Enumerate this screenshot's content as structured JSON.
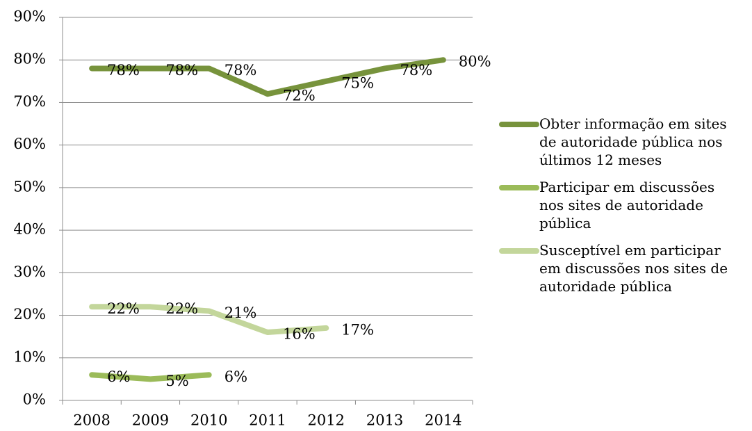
{
  "chart_data": {
    "type": "line",
    "categories": [
      "2008",
      "2009",
      "2010",
      "2011",
      "2012",
      "2013",
      "2014"
    ],
    "series": [
      {
        "name": "Obter informação em sites de autoridade pública nos últimos 12 meses",
        "color": "#77933c",
        "values": [
          78,
          78,
          78,
          72,
          75,
          78,
          80
        ],
        "value_labels": [
          "78%",
          "78%",
          "78%",
          "72%",
          "75%",
          "78%",
          "80%"
        ]
      },
      {
        "name": "Participar em discussões nos sites de autoridade pública",
        "color": "#9bbb59",
        "values": [
          6,
          5,
          6,
          null,
          null,
          null,
          null
        ],
        "value_labels": [
          "6%",
          "5%",
          "6%",
          null,
          null,
          null,
          null
        ]
      },
      {
        "name": "Susceptível em participar em discussões nos sites de autoridade pública",
        "color": "#c3d69b",
        "values": [
          22,
          22,
          21,
          16,
          17,
          null,
          null
        ],
        "value_labels": [
          "22%",
          "22%",
          "21%",
          "16%",
          "17%",
          null,
          null
        ]
      }
    ],
    "ylim": [
      0,
      90
    ],
    "yticks": [
      {
        "value": 0,
        "label": "0%"
      },
      {
        "value": 10,
        "label": "10%"
      },
      {
        "value": 20,
        "label": "20%"
      },
      {
        "value": 30,
        "label": "30%"
      },
      {
        "value": 40,
        "label": "40%"
      },
      {
        "value": 50,
        "label": "50%"
      },
      {
        "value": 60,
        "label": "60%"
      },
      {
        "value": 70,
        "label": "70%"
      },
      {
        "value": 80,
        "label": "80%"
      },
      {
        "value": 90,
        "label": "90%"
      }
    ],
    "grid": true,
    "legend": "right"
  }
}
